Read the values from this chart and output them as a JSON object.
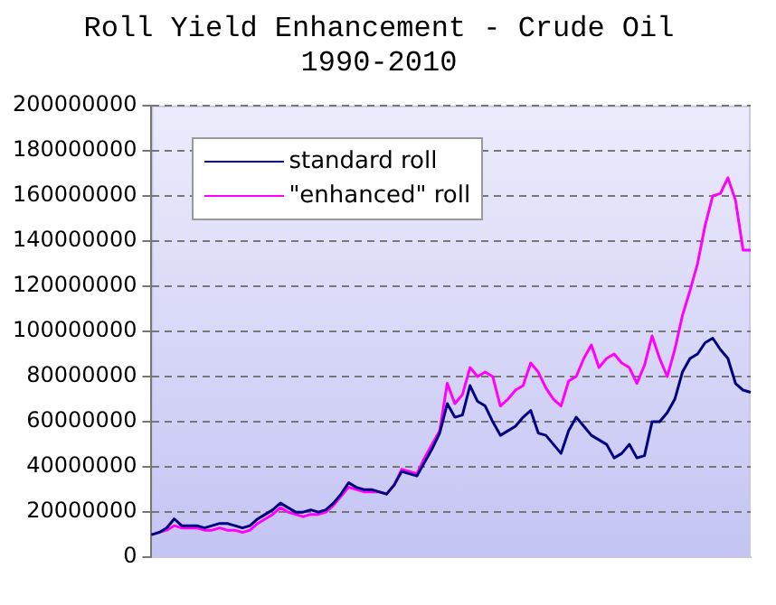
{
  "chart_data": {
    "type": "line",
    "title": "Roll Yield Enhancement - Crude Oil\n1990-2010",
    "categories": [
      null,
      null,
      null,
      null,
      null,
      null,
      null,
      null,
      null,
      null,
      null,
      null,
      null,
      null,
      null,
      null,
      null,
      null,
      null,
      null,
      null,
      null,
      null,
      null,
      null,
      null,
      null,
      null,
      null,
      null,
      null,
      null,
      null,
      null,
      null,
      null,
      null,
      null,
      null,
      null,
      null,
      null,
      null,
      null,
      null,
      null,
      null,
      null,
      null,
      null,
      null,
      null,
      null,
      null,
      null,
      null,
      null,
      null,
      null,
      null,
      null,
      null,
      null,
      null,
      null,
      null,
      null,
      null,
      null,
      null,
      null,
      null,
      null,
      null,
      null,
      null,
      null,
      null,
      null,
      null
    ],
    "series": [
      {
        "name": "standard roll",
        "color": "#000080",
        "values": [
          10000000,
          11000000,
          13000000,
          17000000,
          14000000,
          14000000,
          14000000,
          13000000,
          14000000,
          15000000,
          15000000,
          14000000,
          13000000,
          14000000,
          17000000,
          19000000,
          21000000,
          24000000,
          22000000,
          20000000,
          20000000,
          21000000,
          20000000,
          21000000,
          24000000,
          28000000,
          33000000,
          31000000,
          30000000,
          30000000,
          29000000,
          28000000,
          32000000,
          38000000,
          37000000,
          36000000,
          42000000,
          48000000,
          55000000,
          68000000,
          62000000,
          63000000,
          76000000,
          69000000,
          67000000,
          60000000,
          54000000,
          56000000,
          58000000,
          62000000,
          65000000,
          55000000,
          54000000,
          50000000,
          46000000,
          56000000,
          62000000,
          58000000,
          54000000,
          52000000,
          50000000,
          44000000,
          46000000,
          50000000,
          44000000,
          45000000,
          60000000,
          60000000,
          64000000,
          70000000,
          82000000,
          88000000,
          90000000,
          95000000,
          97000000,
          92000000,
          88000000,
          77000000,
          74000000,
          73000000
        ]
      },
      {
        "name": "\"enhanced\" roll",
        "color": "#ff00ff",
        "values": [
          10000000,
          11000000,
          12000000,
          14000000,
          13000000,
          13000000,
          13000000,
          12000000,
          12000000,
          13000000,
          12000000,
          12000000,
          11000000,
          12000000,
          15000000,
          17000000,
          19000000,
          22000000,
          20000000,
          19000000,
          18000000,
          19000000,
          19000000,
          20000000,
          23000000,
          27000000,
          31000000,
          30000000,
          29000000,
          29000000,
          29000000,
          28000000,
          32000000,
          39000000,
          38000000,
          37000000,
          44000000,
          50000000,
          56000000,
          77000000,
          68000000,
          72000000,
          84000000,
          80000000,
          82000000,
          80000000,
          67000000,
          70000000,
          74000000,
          76000000,
          86000000,
          82000000,
          75000000,
          70000000,
          67000000,
          78000000,
          80000000,
          88000000,
          94000000,
          84000000,
          88000000,
          90000000,
          86000000,
          84000000,
          77000000,
          85000000,
          98000000,
          88000000,
          80000000,
          92000000,
          107000000,
          118000000,
          130000000,
          147000000,
          160000000,
          161000000,
          168000000,
          158000000,
          136000000,
          136000000
        ]
      }
    ],
    "ylim": [
      0,
      200000000
    ],
    "yticks": [
      0,
      20000000,
      40000000,
      60000000,
      80000000,
      100000000,
      120000000,
      140000000,
      160000000,
      180000000,
      200000000
    ],
    "grid": "y",
    "legend": "top left",
    "marker": "none",
    "line_style": "solid"
  }
}
